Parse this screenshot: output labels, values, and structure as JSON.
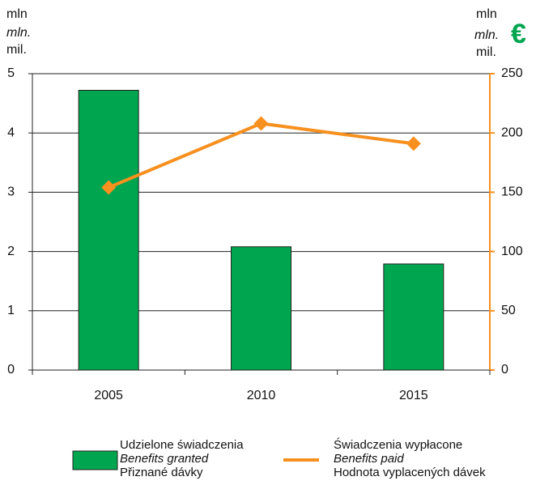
{
  "chart_data": {
    "type": "bar",
    "y_unit": [
      "mln",
      "mln.",
      "mil."
    ],
    "y2_unit": [
      "mln",
      "mln.",
      "mil."
    ],
    "y2_currency": "€",
    "categories": [
      "2005",
      "2010",
      "2015"
    ],
    "series": [
      {
        "name": [
          "Udzielone świadczenia",
          "Benefits granted",
          "Přiznané dávky"
        ],
        "type": "bar",
        "color": "#00a54f",
        "values": [
          4.72,
          2.08,
          1.79
        ]
      },
      {
        "name": [
          "Świadczenia wypłacone",
          "Benefits paid",
          "Hodnota vyplacených dávek"
        ],
        "type": "line",
        "axis": "y2",
        "color": "#f7901e",
        "values": [
          154,
          208,
          191
        ]
      }
    ],
    "ylim": [
      0,
      5
    ],
    "yticks": [
      0,
      1,
      2,
      3,
      4,
      5
    ],
    "y2lim": [
      0,
      250
    ],
    "y2ticks": [
      0,
      50,
      100,
      150,
      200,
      250
    ],
    "grid": true
  }
}
